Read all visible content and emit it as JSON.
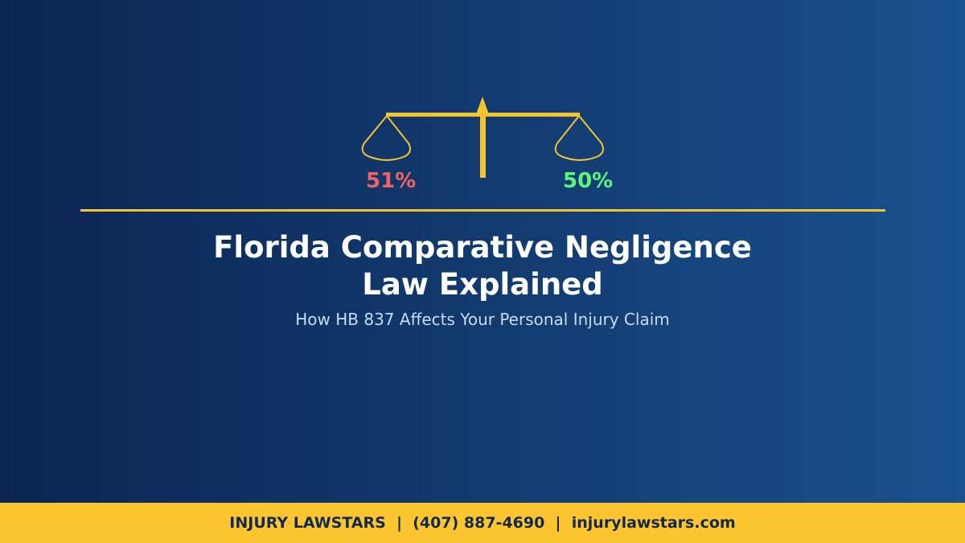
{
  "graphic": {
    "left_percent": "51%",
    "right_percent": "50%",
    "accent_color": "#f4c430",
    "left_color": "#f06468",
    "right_color": "#5ef57a",
    "icon": "scales-of-justice-icon"
  },
  "title_line1": "Florida Comparative Negligence",
  "title_line2": "Law Explained",
  "subtitle": "How HB 837 Affects Your Personal Injury Claim",
  "footer": {
    "firm": "INJURY LAWSTARS",
    "separator": "  |  ",
    "phone": "(407) 887-4690",
    "website": "injurylawstars.com"
  }
}
